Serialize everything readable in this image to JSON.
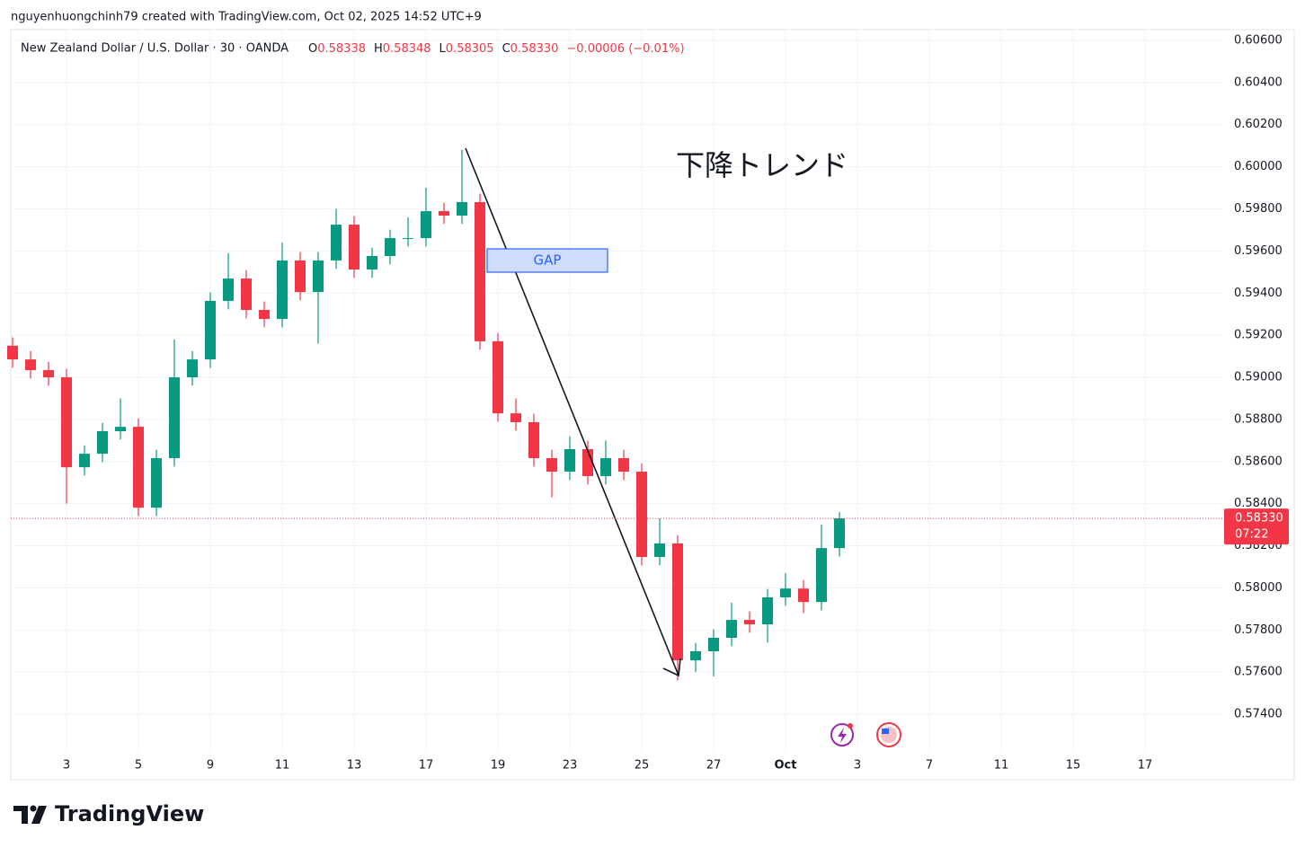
{
  "credit": "nguyenhuongchinh79 created with TradingView.com, Oct 02, 2025 14:52 UTC+9",
  "brand": "TradingView",
  "chart_data": {
    "type": "candlestick",
    "title": "New Zealand Dollar / U.S. Dollar · 30 · OANDA",
    "readout": [
      {
        "key": "O",
        "value": "0.58338"
      },
      {
        "key": "H",
        "value": "0.58348"
      },
      {
        "key": "L",
        "value": "0.58305"
      },
      {
        "key": "C",
        "value": "0.58330"
      }
    ],
    "change": "−0.00006 (−0.01%)",
    "annotations": {
      "trend": "下降トレンド",
      "gap": "GAP"
    },
    "up_color": "#089981",
    "down_color": "#f23645",
    "grid": true,
    "xlim": [
      -0.775,
      16.075
    ],
    "xticks": [
      {
        "value": 0,
        "label": "3"
      },
      {
        "value": 1,
        "label": "5"
      },
      {
        "value": 2,
        "label": "9"
      },
      {
        "value": 3,
        "label": "11"
      },
      {
        "value": 4,
        "label": "13"
      },
      {
        "value": 5,
        "label": "17"
      },
      {
        "value": 6,
        "label": "19"
      },
      {
        "value": 7,
        "label": "23"
      },
      {
        "value": 8,
        "label": "25"
      },
      {
        "value": 9,
        "label": "27"
      },
      {
        "value": 10,
        "label": "Oct"
      },
      {
        "value": 11,
        "label": "3"
      },
      {
        "value": 12,
        "label": "7"
      },
      {
        "value": 13,
        "label": "11"
      },
      {
        "value": 14,
        "label": "15"
      },
      {
        "value": 15,
        "label": "17"
      }
    ],
    "ylim": [
      0.57089,
      0.60651
    ],
    "yticks": [
      {
        "value": 0.574,
        "label": "0.57400"
      },
      {
        "value": 0.576,
        "label": "0.57600"
      },
      {
        "value": 0.578,
        "label": "0.57800"
      },
      {
        "value": 0.58,
        "label": "0.58000"
      },
      {
        "value": 0.582,
        "label": "0.58200"
      },
      {
        "value": 0.584,
        "label": "0.58400"
      },
      {
        "value": 0.586,
        "label": "0.58600"
      },
      {
        "value": 0.588,
        "label": "0.58800"
      },
      {
        "value": 0.59,
        "label": "0.59000"
      },
      {
        "value": 0.592,
        "label": "0.59200"
      },
      {
        "value": 0.594,
        "label": "0.59400"
      },
      {
        "value": 0.596,
        "label": "0.59600"
      },
      {
        "value": 0.598,
        "label": "0.59800"
      },
      {
        "value": 0.6,
        "label": "0.60000"
      },
      {
        "value": 0.602,
        "label": "0.60200"
      },
      {
        "value": 0.604,
        "label": "0.60400"
      },
      {
        "value": 0.606,
        "label": "0.60600"
      }
    ],
    "last_price": {
      "value": 0.5833,
      "label": "0.58330"
    },
    "countdown": "07:22",
    "x": [
      -0.75,
      -0.5,
      -0.25,
      0,
      0.25,
      0.5,
      0.75,
      1,
      1.25,
      1.5,
      1.75,
      2,
      2.25,
      2.5,
      2.75,
      3,
      3.25,
      3.5,
      3.75,
      4,
      4.25,
      4.5,
      4.75,
      5,
      5.25,
      5.5,
      5.75,
      6,
      6.25,
      6.5,
      6.75,
      7,
      7.25,
      7.5,
      7.75,
      8,
      8.25,
      8.5,
      8.75,
      9,
      9.25,
      9.5,
      9.75,
      10,
      10.25,
      10.5,
      10.75
    ],
    "open": [
      0.5915,
      0.59085,
      0.59034,
      0.59,
      0.58573,
      0.58637,
      0.58744,
      0.58765,
      0.58381,
      0.58616,
      0.59,
      0.59085,
      0.59363,
      0.59469,
      0.5932,
      0.59277,
      0.59555,
      0.59405,
      0.59555,
      0.59725,
      0.59512,
      0.59576,
      0.59661,
      0.59661,
      0.59789,
      0.59768,
      0.59832,
      0.59171,
      0.58829,
      0.58787,
      0.58616,
      0.58552,
      0.58659,
      0.58531,
      0.58616,
      0.58552,
      0.58147,
      0.58211,
      0.57656,
      0.57699,
      0.57763,
      0.57848,
      0.57827,
      0.57955,
      0.57997,
      0.57933,
      0.58189
    ],
    "high": [
      0.5919,
      0.59125,
      0.59074,
      0.5904,
      0.58677,
      0.58784,
      0.589,
      0.58805,
      0.58656,
      0.5918,
      0.59125,
      0.59403,
      0.5959,
      0.59509,
      0.5936,
      0.5964,
      0.59595,
      0.59595,
      0.598,
      0.59765,
      0.59616,
      0.59701,
      0.5976,
      0.599,
      0.59829,
      0.6008,
      0.59872,
      0.59211,
      0.589,
      0.58827,
      0.58656,
      0.5872,
      0.58699,
      0.587,
      0.58656,
      0.58592,
      0.5833,
      0.58251,
      0.57739,
      0.57803,
      0.5793,
      0.57888,
      0.57995,
      0.5807,
      0.58037,
      0.583,
      0.5836
    ],
    "low": [
      0.59045,
      0.58994,
      0.5896,
      0.584,
      0.58533,
      0.58597,
      0.58704,
      0.58341,
      0.58341,
      0.58576,
      0.5896,
      0.59045,
      0.59323,
      0.5928,
      0.59237,
      0.59237,
      0.59365,
      0.5916,
      0.59515,
      0.59472,
      0.59472,
      0.59536,
      0.59621,
      0.59621,
      0.59728,
      0.59728,
      0.59131,
      0.58789,
      0.58747,
      0.58576,
      0.5843,
      0.58512,
      0.58491,
      0.58491,
      0.58512,
      0.58107,
      0.58107,
      0.5756,
      0.576,
      0.5758,
      0.57723,
      0.57787,
      0.5774,
      0.57915,
      0.5788,
      0.57893,
      0.58149
    ],
    "close": [
      0.59085,
      0.59034,
      0.59,
      0.58573,
      0.58637,
      0.58744,
      0.58765,
      0.58381,
      0.58616,
      0.59,
      0.59085,
      0.59363,
      0.59469,
      0.5932,
      0.59277,
      0.59555,
      0.59405,
      0.59555,
      0.59725,
      0.59512,
      0.59576,
      0.59661,
      0.59661,
      0.59789,
      0.59768,
      0.59832,
      0.59171,
      0.58829,
      0.58787,
      0.58616,
      0.58552,
      0.58659,
      0.58531,
      0.58616,
      0.58552,
      0.58147,
      0.58211,
      0.57656,
      0.57699,
      0.57763,
      0.57848,
      0.57827,
      0.57955,
      0.57997,
      0.57933,
      0.58189,
      0.5833
    ]
  }
}
